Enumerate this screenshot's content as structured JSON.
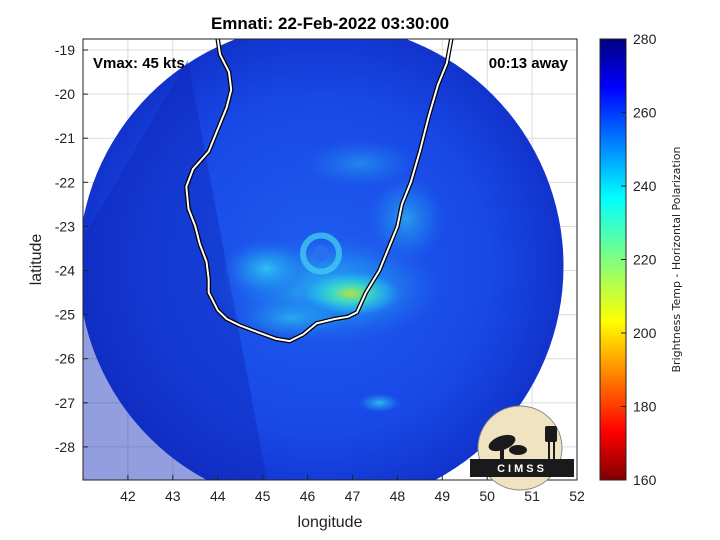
{
  "title": "Emnati: 22-Feb-2022 03:30:00",
  "vmax_text": "Vmax: 45 kts",
  "time_away_text": "00:13 away",
  "logo_text": "CIMSS",
  "x_axis": {
    "label": "longitude",
    "range": [
      41,
      52
    ],
    "ticks": [
      42,
      43,
      44,
      45,
      46,
      47,
      48,
      49,
      50,
      51,
      52
    ]
  },
  "y_axis": {
    "label": "latitude",
    "range": [
      -28.75,
      -18.75
    ],
    "ticks": [
      -19,
      -20,
      -21,
      -22,
      -23,
      -24,
      -25,
      -26,
      -27,
      -28
    ]
  },
  "colorbar": {
    "label": "Brightness Temp - Horizontal Polarization",
    "range": [
      160,
      280
    ],
    "ticks": [
      280,
      260,
      240,
      220,
      200,
      180,
      160
    ],
    "colormap": "jet"
  },
  "swath": {
    "center": [
      46.3,
      -23.9
    ],
    "radius_deg": 5.4
  },
  "storm_center": [
    46.3,
    -23.5
  ],
  "coastline": [
    [
      44.0,
      -18.75
    ],
    [
      44.05,
      -19.1
    ],
    [
      44.25,
      -19.5
    ],
    [
      44.3,
      -19.9
    ],
    [
      44.2,
      -20.3
    ],
    [
      44.0,
      -20.8
    ],
    [
      43.8,
      -21.3
    ],
    [
      43.45,
      -21.7
    ],
    [
      43.3,
      -22.1
    ],
    [
      43.35,
      -22.6
    ],
    [
      43.5,
      -23.0
    ],
    [
      43.6,
      -23.4
    ],
    [
      43.75,
      -23.8
    ],
    [
      43.8,
      -24.2
    ],
    [
      43.8,
      -24.5
    ],
    [
      44.0,
      -24.9
    ],
    [
      44.2,
      -25.1
    ],
    [
      44.5,
      -25.25
    ],
    [
      44.9,
      -25.4
    ],
    [
      45.3,
      -25.55
    ],
    [
      45.6,
      -25.6
    ],
    [
      45.9,
      -25.45
    ],
    [
      46.2,
      -25.2
    ],
    [
      46.6,
      -25.1
    ],
    [
      46.9,
      -25.05
    ],
    [
      47.1,
      -24.95
    ],
    [
      47.3,
      -24.5
    ],
    [
      47.6,
      -24.0
    ],
    [
      47.8,
      -23.5
    ],
    [
      48.0,
      -23.0
    ],
    [
      48.1,
      -22.5
    ],
    [
      48.3,
      -22.0
    ],
    [
      48.5,
      -21.3
    ],
    [
      48.7,
      -20.5
    ],
    [
      48.9,
      -19.8
    ],
    [
      49.1,
      -19.3
    ],
    [
      49.2,
      -18.75
    ]
  ],
  "colors": {
    "background_field": "#1530d8",
    "plot_frame": "#000000"
  }
}
